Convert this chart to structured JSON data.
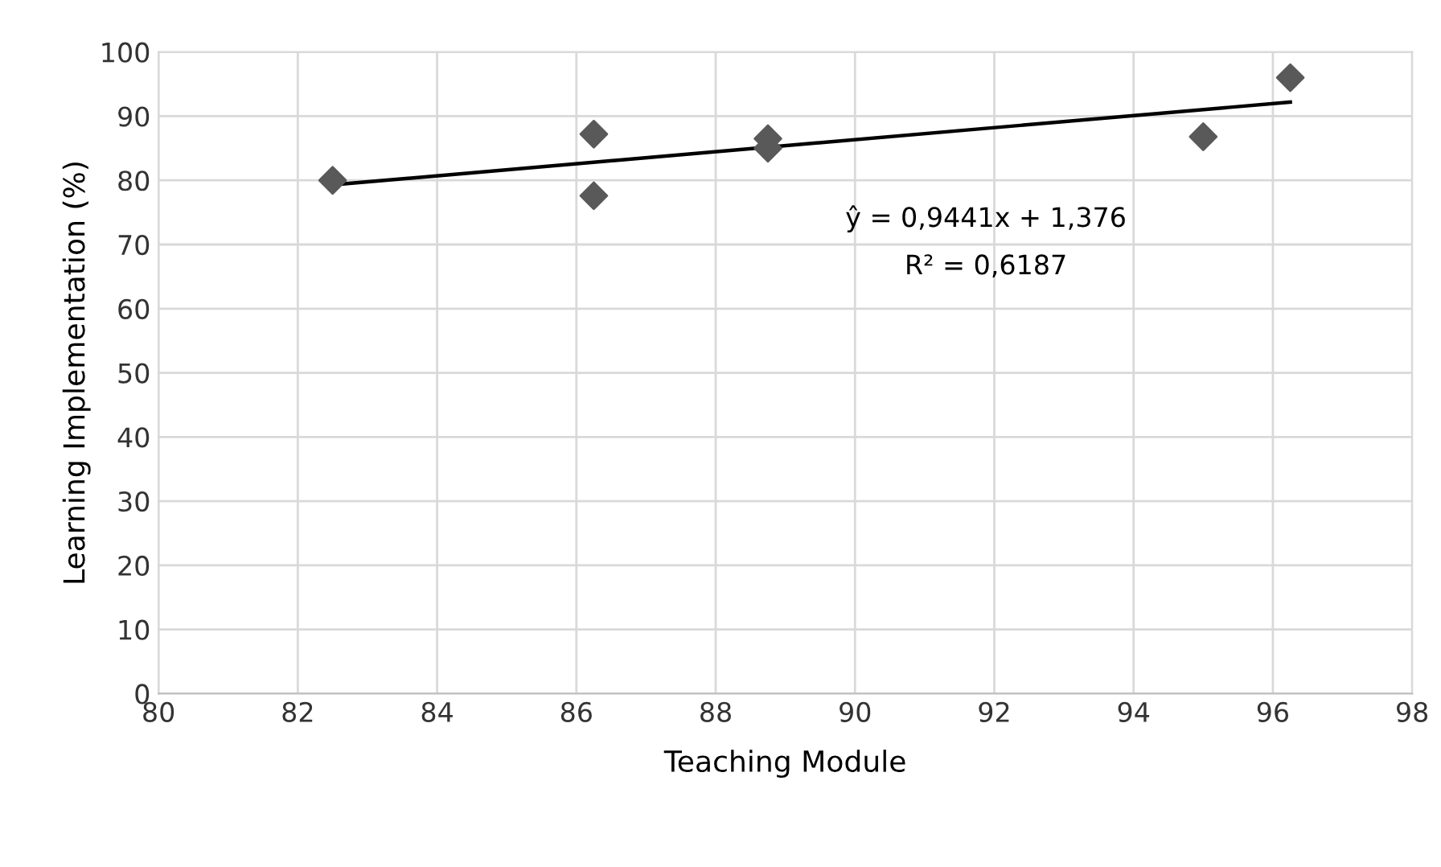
{
  "chart_data": {
    "type": "scatter",
    "xlabel": "Teaching Module",
    "ylabel": "Learning Implementation (%)",
    "series": [
      {
        "color": "#595959",
        "marker": "diamond",
        "x": [
          82.5,
          86.25,
          86.25,
          88.75,
          88.75,
          95,
          96.25
        ],
        "values": [
          80,
          87.2,
          77.6,
          86.5,
          85,
          86.8,
          96
        ]
      },
      {
        "type": "line",
        "color": "#000000",
        "marker": "none",
        "line_style": "solid",
        "x": [
          82.5,
          96.25
        ],
        "values": [
          79.3,
          92.2
        ]
      }
    ],
    "annotations": [
      "ŷ = 0,9441x + 1,376",
      "R² = 0,6187"
    ],
    "xlim": [
      80,
      98
    ],
    "xticks": [
      80,
      82,
      84,
      86,
      88,
      90,
      92,
      94,
      96,
      98
    ],
    "ylim": [
      0,
      100
    ],
    "yticks": [
      0,
      10,
      20,
      30,
      40,
      50,
      60,
      70,
      80,
      90,
      100
    ],
    "grid": true,
    "legend": false
  }
}
